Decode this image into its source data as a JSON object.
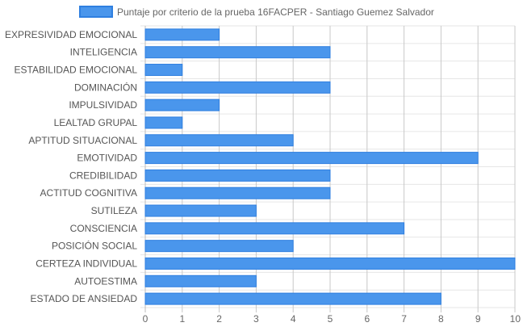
{
  "chart_data": {
    "type": "bar",
    "orientation": "horizontal",
    "legend_position": "top",
    "grid": true,
    "colors": {
      "bar_fill": "#4a96ec",
      "bar_stroke": "#2f7fe0",
      "grid": "#e6e6e6",
      "axis_text": "#666666"
    },
    "series": [
      {
        "name": "Puntaje por criterio de la prueba 16FACPER - Santiago Guemez Salvador",
        "values": [
          2,
          5,
          1,
          5,
          2,
          1,
          4,
          9,
          5,
          5,
          3,
          7,
          4,
          10,
          3,
          8
        ]
      }
    ],
    "categories": [
      "EXPRESIVIDAD EMOCIONAL",
      "INTELIGENCIA",
      "ESTABILIDAD EMOCIONAL",
      "DOMINACIÓN",
      "IMPULSIVIDAD",
      "LEALTAD GRUPAL",
      "APTITUD SITUACIONAL",
      "EMOTIVIDAD",
      "CREDIBILIDAD",
      "ACTITUD COGNITIVA",
      "SUTILEZA",
      "CONSCIENCIA",
      "POSICIÓN SOCIAL",
      "CERTEZA INDIVIDUAL",
      "AUTOESTIMA",
      "ESTADO DE ANSIEDAD"
    ],
    "xlim": [
      0,
      10
    ],
    "xticks": [
      "0",
      "1",
      "2",
      "3",
      "4",
      "5",
      "6",
      "7",
      "8",
      "9",
      "10"
    ]
  }
}
